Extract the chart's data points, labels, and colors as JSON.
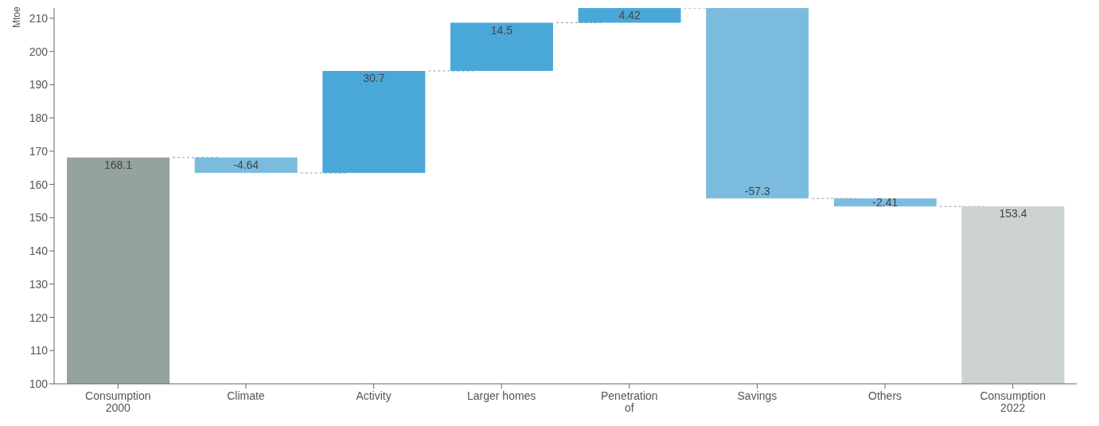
{
  "chart_data": {
    "type": "bar",
    "ylabel": "Mtoe",
    "categories": [
      "Consumption 2000",
      "Climate",
      "Activity",
      "Larger homes",
      "Penetration of",
      "Savings",
      "Others",
      "Consumption 2022"
    ],
    "values": [
      168.1,
      -4.64,
      30.7,
      14.5,
      4.42,
      -57.3,
      -2.41,
      153.4
    ],
    "base": [
      null,
      168.1,
      163.46,
      194.16,
      208.66,
      213.08,
      155.78,
      null
    ],
    "colors": [
      "#95a39d",
      "#7bbcde",
      "#4aa8d8",
      "#4aa8d8",
      "#4aa8d8",
      "#7bbcde",
      "#7bbcde",
      "#cdd3d0"
    ],
    "ylim": [
      100,
      213.1
    ],
    "yticks": [
      100,
      110,
      120,
      130,
      140,
      150,
      160,
      170,
      180,
      190,
      200,
      210
    ],
    "data_labels": true
  }
}
